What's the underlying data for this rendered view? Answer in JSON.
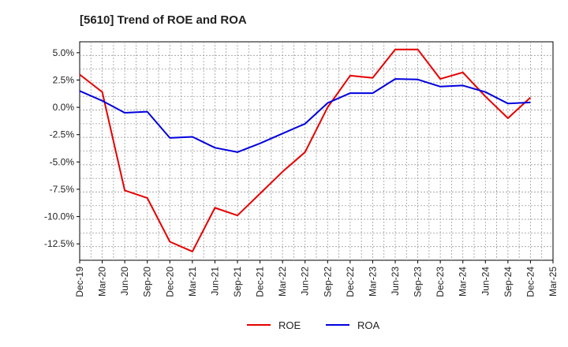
{
  "chart_data": {
    "type": "line",
    "title": "[5610]  Trend of ROE and ROA",
    "xlabel": "",
    "ylabel": "",
    "categories": [
      "Dec-19",
      "Mar-20",
      "Jun-20",
      "Sep-20",
      "Dec-20",
      "Mar-21",
      "Jun-21",
      "Sep-21",
      "Dec-21",
      "Mar-22",
      "Jun-22",
      "Sep-22",
      "Dec-22",
      "Mar-23",
      "Jun-23",
      "Sep-23",
      "Dec-23",
      "Mar-24",
      "Jun-24",
      "Sep-24",
      "Dec-24",
      "Mar-25"
    ],
    "ylim": [
      -14.0,
      6.0
    ],
    "yticks": [
      5.0,
      2.5,
      0.0,
      -2.5,
      -5.0,
      -7.5,
      -10.0,
      -12.5
    ],
    "ytick_labels": [
      "5.0%",
      "2.5%",
      "0.0%",
      "-2.5%",
      "-5.0%",
      "-7.5%",
      "-10.0%",
      "-12.5%"
    ],
    "grid": true,
    "legend_position": "bottom",
    "series": [
      {
        "name": "ROE",
        "color": "#e60000",
        "values": [
          3.0,
          1.4,
          -7.6,
          -8.3,
          -12.3,
          -13.2,
          -9.2,
          -9.9,
          -7.9,
          -5.9,
          -4.1,
          0.0,
          2.9,
          2.7,
          5.3,
          5.3,
          2.6,
          3.2,
          1.0,
          -1.0,
          0.9,
          null
        ]
      },
      {
        "name": "ROA",
        "color": "#0000dd",
        "values": [
          1.5,
          0.6,
          -0.5,
          -0.4,
          -2.8,
          -2.7,
          -3.7,
          -4.1,
          -3.3,
          -2.4,
          -1.5,
          0.4,
          1.3,
          1.3,
          2.6,
          2.55,
          1.9,
          2.0,
          1.4,
          0.35,
          0.45,
          null
        ]
      }
    ]
  }
}
